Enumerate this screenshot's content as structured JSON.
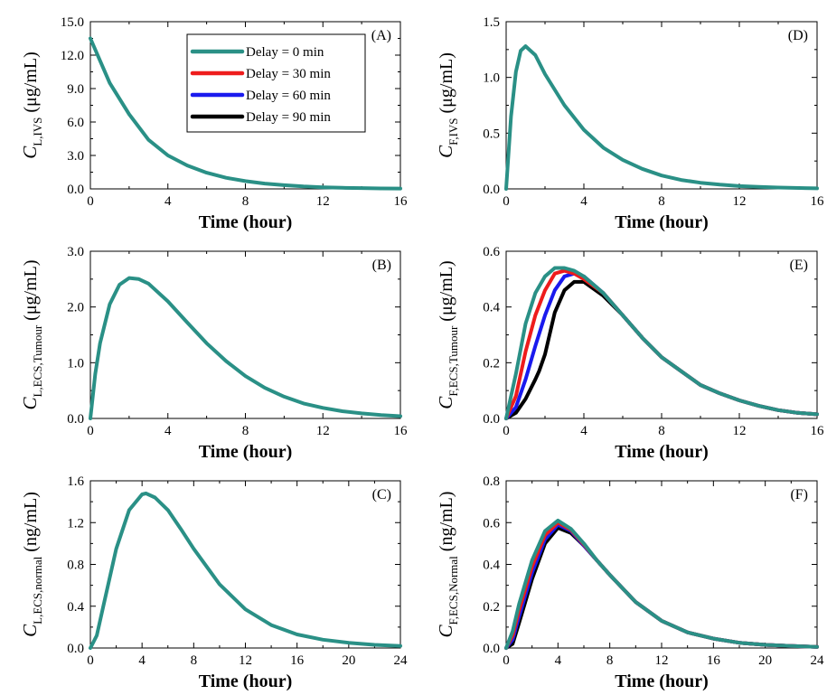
{
  "colors": {
    "d0": "#2a9086",
    "d30": "#ee1c1c",
    "d60": "#1a1aee",
    "d90": "#000000"
  },
  "legend": [
    {
      "key": "d0",
      "label": "Delay = 0 min"
    },
    {
      "key": "d30",
      "label": "Delay = 30 min"
    },
    {
      "key": "d60",
      "label": "Delay = 60 min"
    },
    {
      "key": "d90",
      "label": "Delay = 90 min"
    }
  ],
  "chart_data": [
    {
      "panel": "(A)",
      "type": "line",
      "xlabel": "Time (hour)",
      "ylabel_main": "C",
      "ylabel_sub": "L,IVS",
      "ylabel_unit": "(μg/mL)",
      "xlim": [
        0,
        16
      ],
      "ylim": [
        0,
        15
      ],
      "xticks": [
        0,
        4,
        8,
        12,
        16
      ],
      "xtick_labels": [
        "0",
        "4",
        "8",
        "12",
        "16"
      ],
      "yticks": [
        0,
        3,
        6,
        9,
        12,
        15
      ],
      "ytick_labels": [
        "0.0",
        "3.0",
        "6.0",
        "9.0",
        "12.0",
        "15.0"
      ],
      "series": [
        {
          "name": "Delay = 0 min",
          "key": "d0",
          "x": [
            0,
            1,
            2,
            3,
            4,
            5,
            6,
            7,
            8,
            9,
            10,
            11,
            12,
            13,
            14,
            15,
            16
          ],
          "y": [
            13.5,
            9.5,
            6.7,
            4.4,
            3.0,
            2.1,
            1.45,
            1.0,
            0.7,
            0.48,
            0.33,
            0.22,
            0.15,
            0.1,
            0.07,
            0.04,
            0.03
          ]
        }
      ]
    },
    {
      "panel": "(D)",
      "type": "line",
      "xlabel": "Time (hour)",
      "ylabel_main": "C",
      "ylabel_sub": "F,IVS",
      "ylabel_unit": "(μg/mL)",
      "xlim": [
        0,
        16
      ],
      "ylim": [
        0,
        1.5
      ],
      "xticks": [
        0,
        4,
        8,
        12,
        16
      ],
      "xtick_labels": [
        "0",
        "4",
        "8",
        "12",
        "16"
      ],
      "yticks": [
        0,
        0.5,
        1.0,
        1.5
      ],
      "ytick_labels": [
        "0.0",
        "0.5",
        "1.0",
        "1.5"
      ],
      "series": [
        {
          "name": "Delay = 0 min",
          "key": "d0",
          "x": [
            0,
            0.25,
            0.5,
            0.75,
            1,
            1.5,
            2,
            3,
            4,
            5,
            6,
            7,
            8,
            9,
            10,
            11,
            12,
            13,
            14,
            16
          ],
          "y": [
            0,
            0.65,
            1.05,
            1.24,
            1.28,
            1.2,
            1.03,
            0.75,
            0.53,
            0.37,
            0.26,
            0.18,
            0.12,
            0.08,
            0.055,
            0.038,
            0.025,
            0.018,
            0.012,
            0.005
          ]
        }
      ]
    },
    {
      "panel": "(B)",
      "type": "line",
      "xlabel": "Time (hour)",
      "ylabel_main": "C",
      "ylabel_sub": "L,ECS,Tumour",
      "ylabel_unit": "(μg/mL)",
      "xlim": [
        0,
        16
      ],
      "ylim": [
        0,
        3.0
      ],
      "xticks": [
        0,
        4,
        8,
        12,
        16
      ],
      "xtick_labels": [
        "0",
        "4",
        "8",
        "12",
        "16"
      ],
      "yticks": [
        0,
        1.0,
        2.0,
        3.0
      ],
      "ytick_labels": [
        "0.0",
        "1.0",
        "2.0",
        "3.0"
      ],
      "series": [
        {
          "name": "Delay = 0 min",
          "key": "d0",
          "x": [
            0,
            0.25,
            0.5,
            1,
            1.5,
            2,
            2.5,
            3,
            4,
            5,
            6,
            7,
            8,
            9,
            10,
            11,
            12,
            13,
            14,
            15,
            16
          ],
          "y": [
            0,
            0.8,
            1.35,
            2.05,
            2.4,
            2.52,
            2.5,
            2.42,
            2.1,
            1.72,
            1.35,
            1.03,
            0.76,
            0.55,
            0.39,
            0.27,
            0.19,
            0.13,
            0.09,
            0.06,
            0.04
          ]
        }
      ]
    },
    {
      "panel": "(E)",
      "type": "line",
      "xlabel": "Time (hour)",
      "ylabel_main": "C",
      "ylabel_sub": "F,ECS,Tumour",
      "ylabel_unit": "(μg/mL)",
      "xlim": [
        0,
        16
      ],
      "ylim": [
        0,
        0.6
      ],
      "xticks": [
        0,
        4,
        8,
        12,
        16
      ],
      "xtick_labels": [
        "0",
        "4",
        "8",
        "12",
        "16"
      ],
      "yticks": [
        0,
        0.2,
        0.4,
        0.6
      ],
      "ytick_labels": [
        "0.0",
        "0.2",
        "0.4",
        "0.6"
      ],
      "series": [
        {
          "name": "Delay = 90 min",
          "key": "d90",
          "x": [
            0,
            0.5,
            1,
            1.5,
            1.7,
            2,
            2.5,
            3,
            3.5,
            4,
            5,
            6,
            7,
            8,
            9,
            10,
            11,
            12,
            13,
            14,
            15,
            16
          ],
          "y": [
            0,
            0.02,
            0.07,
            0.14,
            0.17,
            0.23,
            0.38,
            0.46,
            0.49,
            0.49,
            0.44,
            0.37,
            0.29,
            0.22,
            0.17,
            0.12,
            0.09,
            0.065,
            0.045,
            0.03,
            0.02,
            0.015
          ]
        },
        {
          "name": "Delay = 60 min",
          "key": "d60",
          "x": [
            0,
            0.5,
            1,
            1.5,
            2,
            2.5,
            3,
            3.5,
            4,
            5,
            6,
            7,
            8,
            9,
            10,
            11,
            12,
            13,
            14,
            15,
            16
          ],
          "y": [
            0,
            0.04,
            0.14,
            0.26,
            0.37,
            0.46,
            0.51,
            0.52,
            0.51,
            0.45,
            0.37,
            0.29,
            0.22,
            0.17,
            0.12,
            0.09,
            0.065,
            0.045,
            0.03,
            0.02,
            0.015
          ]
        },
        {
          "name": "Delay = 30 min",
          "key": "d30",
          "x": [
            0,
            0.5,
            1,
            1.5,
            2,
            2.5,
            3,
            3.5,
            4,
            5,
            6,
            7,
            8,
            9,
            10,
            11,
            12,
            13,
            14,
            15,
            16
          ],
          "y": [
            0,
            0.08,
            0.24,
            0.37,
            0.46,
            0.52,
            0.53,
            0.52,
            0.5,
            0.45,
            0.37,
            0.29,
            0.22,
            0.17,
            0.12,
            0.09,
            0.065,
            0.045,
            0.03,
            0.02,
            0.015
          ]
        },
        {
          "name": "Delay = 0 min",
          "key": "d0",
          "x": [
            0,
            0.5,
            1,
            1.5,
            2,
            2.5,
            3,
            3.5,
            4,
            5,
            6,
            7,
            8,
            9,
            10,
            11,
            12,
            13,
            14,
            15,
            16
          ],
          "y": [
            0,
            0.16,
            0.34,
            0.45,
            0.51,
            0.54,
            0.54,
            0.53,
            0.51,
            0.45,
            0.37,
            0.29,
            0.22,
            0.17,
            0.12,
            0.09,
            0.065,
            0.045,
            0.03,
            0.02,
            0.015
          ]
        }
      ]
    },
    {
      "panel": "(C)",
      "type": "line",
      "xlabel": "Time (hour)",
      "ylabel_main": "C",
      "ylabel_sub": "L,ECS,normal",
      "ylabel_unit": "(ng/mL)",
      "xlim": [
        0,
        24
      ],
      "ylim": [
        0,
        1.6
      ],
      "xticks": [
        0,
        4,
        8,
        12,
        16,
        20,
        24
      ],
      "xtick_labels": [
        "0",
        "4",
        "8",
        "12",
        "16",
        "20",
        "24"
      ],
      "yticks": [
        0,
        0.4,
        0.8,
        1.2,
        1.6
      ],
      "ytick_labels": [
        "0.0",
        "0.4",
        "0.8",
        "1.2",
        "1.6"
      ],
      "series": [
        {
          "name": "Delay = 0 min",
          "key": "d0",
          "x": [
            0,
            0.5,
            1,
            2,
            3,
            4,
            4.3,
            5,
            6,
            7,
            8,
            10,
            12,
            14,
            16,
            18,
            20,
            22,
            24
          ],
          "y": [
            0,
            0.12,
            0.4,
            0.95,
            1.32,
            1.47,
            1.48,
            1.44,
            1.32,
            1.14,
            0.95,
            0.61,
            0.37,
            0.22,
            0.13,
            0.08,
            0.05,
            0.03,
            0.02
          ]
        }
      ]
    },
    {
      "panel": "(F)",
      "type": "line",
      "xlabel": "Time (hour)",
      "ylabel_main": "C",
      "ylabel_sub": "F,ECS,Normal",
      "ylabel_unit": "(ng/mL)",
      "xlim": [
        0,
        24
      ],
      "ylim": [
        0,
        0.8
      ],
      "xticks": [
        0,
        4,
        8,
        12,
        16,
        20,
        24
      ],
      "xtick_labels": [
        "0",
        "4",
        "8",
        "12",
        "16",
        "20",
        "24"
      ],
      "yticks": [
        0,
        0.2,
        0.4,
        0.6,
        0.8
      ],
      "ytick_labels": [
        "0.0",
        "0.2",
        "0.4",
        "0.6",
        "0.8"
      ],
      "series": [
        {
          "name": "Delay = 90 min",
          "key": "d90",
          "x": [
            0,
            0.5,
            1,
            2,
            3,
            4,
            5,
            6,
            7,
            8,
            10,
            12,
            14,
            16,
            18,
            20,
            22,
            24
          ],
          "y": [
            0,
            0.02,
            0.12,
            0.33,
            0.5,
            0.575,
            0.55,
            0.49,
            0.42,
            0.35,
            0.22,
            0.13,
            0.075,
            0.045,
            0.025,
            0.015,
            0.01,
            0.005
          ]
        },
        {
          "name": "Delay = 60 min",
          "key": "d60",
          "x": [
            0,
            0.5,
            1,
            2,
            3,
            4,
            5,
            6,
            7,
            8,
            10,
            12,
            14,
            16,
            18,
            20,
            22,
            24
          ],
          "y": [
            0,
            0.04,
            0.15,
            0.36,
            0.52,
            0.59,
            0.56,
            0.49,
            0.42,
            0.35,
            0.22,
            0.13,
            0.075,
            0.045,
            0.025,
            0.015,
            0.01,
            0.005
          ]
        },
        {
          "name": "Delay = 30 min",
          "key": "d30",
          "x": [
            0,
            0.5,
            1,
            2,
            3,
            4,
            5,
            6,
            7,
            8,
            10,
            12,
            14,
            16,
            18,
            20,
            22,
            24
          ],
          "y": [
            0,
            0.06,
            0.18,
            0.39,
            0.54,
            0.6,
            0.565,
            0.495,
            0.42,
            0.35,
            0.22,
            0.13,
            0.075,
            0.045,
            0.025,
            0.015,
            0.01,
            0.005
          ]
        },
        {
          "name": "Delay = 0 min",
          "key": "d0",
          "x": [
            0,
            0.5,
            1,
            2,
            3,
            4,
            5,
            6,
            7,
            8,
            10,
            12,
            14,
            16,
            18,
            20,
            22,
            24
          ],
          "y": [
            0,
            0.08,
            0.21,
            0.42,
            0.56,
            0.61,
            0.57,
            0.5,
            0.42,
            0.35,
            0.22,
            0.13,
            0.075,
            0.045,
            0.025,
            0.015,
            0.01,
            0.005
          ]
        }
      ]
    }
  ]
}
